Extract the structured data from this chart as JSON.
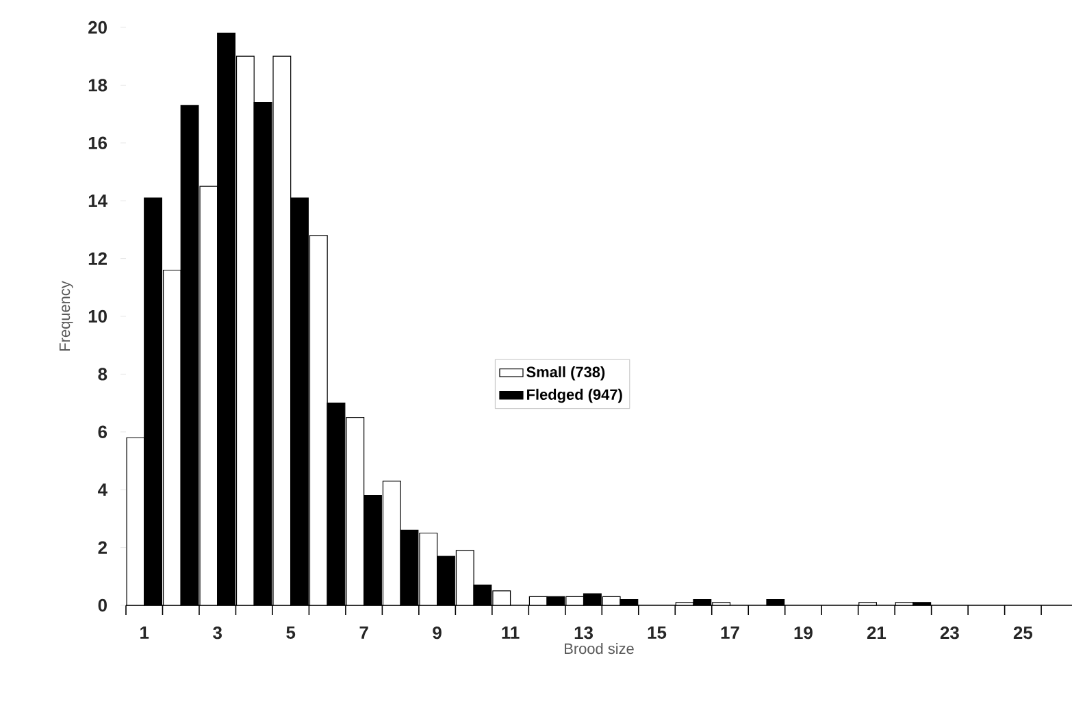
{
  "chart_data": {
    "type": "bar",
    "xlabel": "Brood size",
    "ylabel": "Frequency",
    "categories": [
      "1",
      null,
      "3",
      null,
      "5",
      null,
      "7",
      null,
      "9",
      null,
      "11",
      null,
      "13",
      null,
      "15",
      null,
      "17",
      null,
      "19",
      null,
      "21",
      null,
      "23",
      null,
      "25"
    ],
    "series": [
      {
        "name": "Small (738)",
        "color": "#ffffff",
        "values": [
          5.8,
          11.6,
          14.5,
          19.0,
          19.0,
          12.8,
          6.5,
          4.3,
          2.5,
          1.9,
          0.5,
          0.3,
          0.3,
          0.3,
          null,
          0.1,
          0.1,
          null,
          null,
          null,
          0.1,
          0.1,
          null,
          null,
          null
        ]
      },
      {
        "name": "Fledged (947)",
        "color": "#000000",
        "values": [
          14.1,
          17.3,
          19.8,
          17.4,
          14.1,
          7.0,
          3.8,
          2.6,
          1.7,
          0.7,
          null,
          0.3,
          0.4,
          0.2,
          null,
          0.2,
          null,
          0.2,
          null,
          null,
          null,
          0.1,
          null,
          null,
          null
        ]
      }
    ],
    "ylim": [
      0,
      20
    ],
    "yticks": [
      0,
      2,
      4,
      6,
      8,
      10,
      12,
      14,
      16,
      18,
      20
    ],
    "legend": "center"
  }
}
